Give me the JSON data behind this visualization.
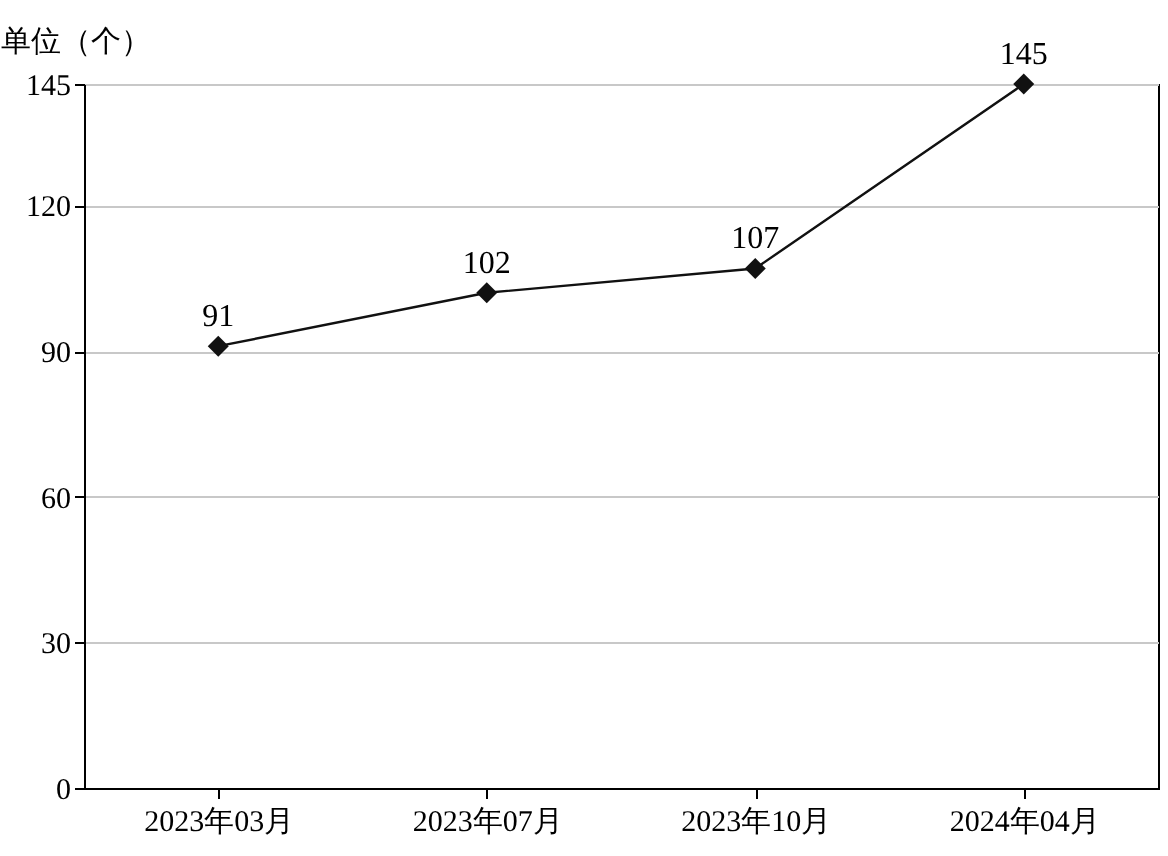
{
  "chart_data": {
    "type": "line",
    "ylabel": "单位（个）",
    "categories": [
      "2023年03月",
      "2023年07月",
      "2023年10月",
      "2024年04月"
    ],
    "series": [
      {
        "color": "#111111",
        "values": [
          91,
          102,
          107,
          145
        ]
      }
    ],
    "ylim": [
      0,
      145
    ],
    "yticks": [
      0,
      30,
      60,
      90,
      120,
      145
    ],
    "grid": "y",
    "marker": "diamond",
    "line_style": "solid",
    "data_labels": true
  }
}
